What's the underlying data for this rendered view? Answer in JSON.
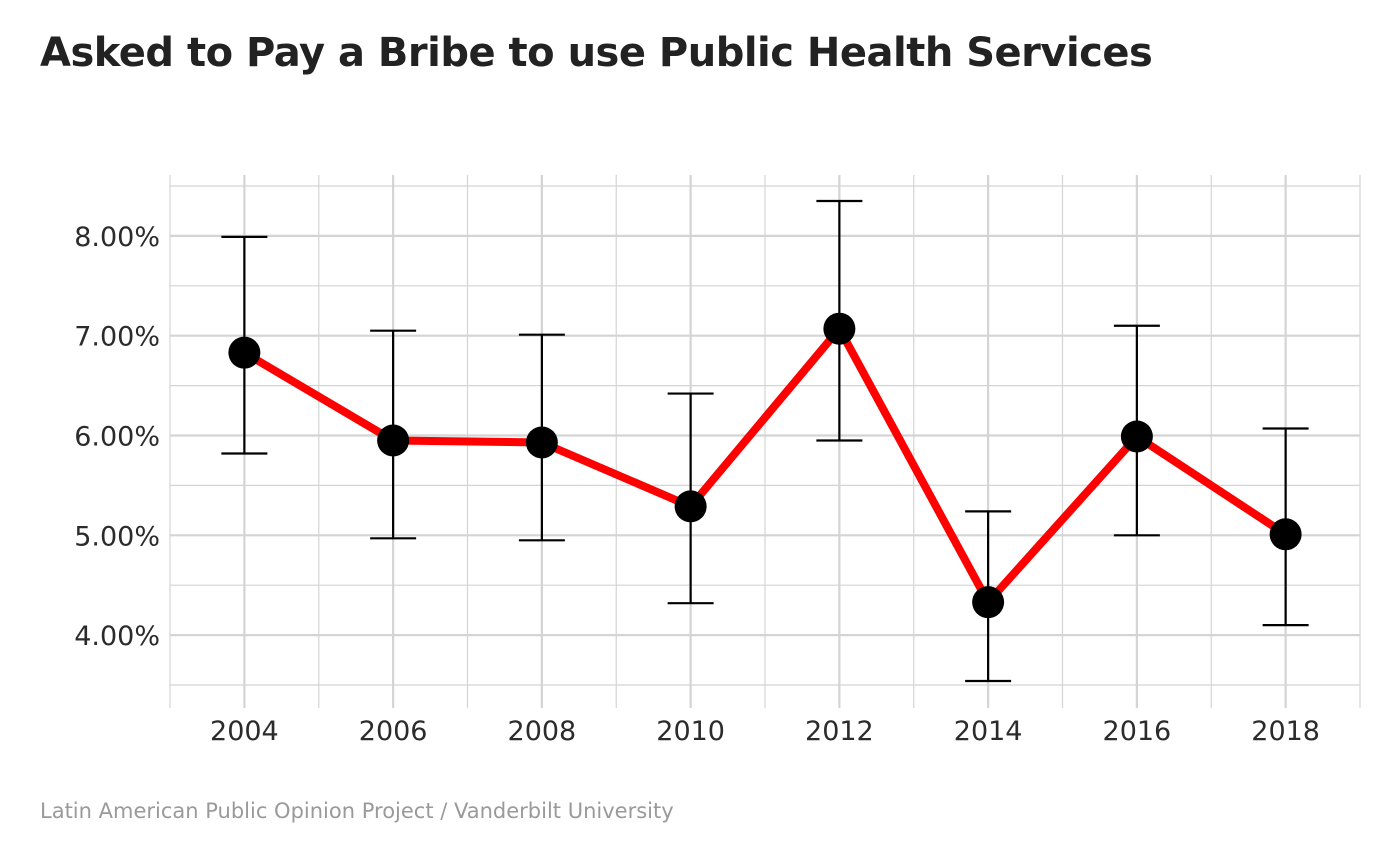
{
  "chart_data": {
    "type": "line",
    "title": "Asked to Pay a Bribe to use Public Health Services",
    "caption": "Latin American Public Opinion Project / Vanderbilt University",
    "xlabel": "",
    "ylabel": "",
    "x": [
      2004,
      2006,
      2008,
      2010,
      2012,
      2014,
      2016,
      2018
    ],
    "x_tick_labels": [
      "2004",
      "2006",
      "2008",
      "2010",
      "2012",
      "2014",
      "2016",
      "2018"
    ],
    "y_ticks": [
      4,
      5,
      6,
      7,
      8
    ],
    "y_tick_labels": [
      "4.00%",
      "5.00%",
      "6.00%",
      "7.00%",
      "8.00%"
    ],
    "xlim": [
      2003,
      2019
    ],
    "ylim": [
      3.47,
      8.53
    ],
    "series": [
      {
        "values": [
          6.83,
          5.95,
          5.93,
          5.29,
          7.07,
          4.33,
          5.99,
          5.01
        ],
        "ci_lower": [
          5.82,
          4.97,
          4.95,
          4.32,
          5.95,
          3.54,
          5.0,
          4.1
        ],
        "ci_upper": [
          7.99,
          7.05,
          7.01,
          6.42,
          8.35,
          5.24,
          7.1,
          6.07
        ]
      }
    ],
    "grid": true,
    "line_color": "#ff0000",
    "marker_color": "#000000",
    "errorbar_color": "#000000",
    "grid_color": "#d4d4d4"
  }
}
